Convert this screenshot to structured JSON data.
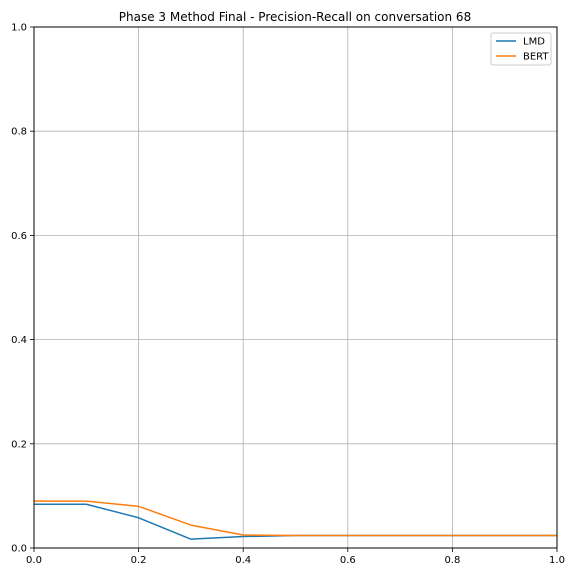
{
  "chart_data": {
    "type": "line",
    "title": "Phase 3 Method Final - Precision-Recall on conversation 68",
    "xlabel": "",
    "ylabel": "",
    "xlim": [
      0,
      1
    ],
    "ylim": [
      0,
      1
    ],
    "x_ticks": [
      0,
      0.2,
      0.4,
      0.6,
      0.8,
      1.0
    ],
    "x_tick_labels": [
      "0.0",
      "0.2",
      "0.4",
      "0.6",
      "0.8",
      "1.0"
    ],
    "y_ticks": [
      0,
      0.2,
      0.4,
      0.6,
      0.8,
      1.0
    ],
    "y_tick_labels": [
      "0.0",
      "0.2",
      "0.4",
      "0.6",
      "0.8",
      "1.0"
    ],
    "grid": true,
    "legend_position": "top-right",
    "x": [
      0.0,
      0.1,
      0.2,
      0.3,
      0.4,
      0.5,
      0.6,
      0.7,
      0.8,
      0.9,
      1.0
    ],
    "series": [
      {
        "name": "LMD",
        "color": "#1f77b4",
        "values": [
          0.084,
          0.084,
          0.058,
          0.017,
          0.022,
          0.024,
          0.024,
          0.024,
          0.024,
          0.024,
          0.024
        ]
      },
      {
        "name": "BERT",
        "color": "#ff7f0e",
        "values": [
          0.09,
          0.09,
          0.08,
          0.044,
          0.025,
          0.024,
          0.024,
          0.024,
          0.024,
          0.024,
          0.024
        ]
      }
    ]
  }
}
